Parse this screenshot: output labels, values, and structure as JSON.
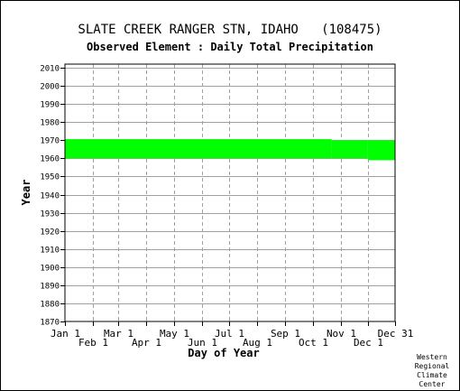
{
  "chart_data": {
    "type": "bar",
    "title": "SLATE CREEK RANGER STN, IDAHO   (108475)",
    "subtitle": "Observed Element : Daily Total Precipitation",
    "xlabel": "Day of Year",
    "ylabel": "Year",
    "ylim": [
      1870,
      2012
    ],
    "y_ticks": [
      1870,
      1880,
      1890,
      1900,
      1910,
      1920,
      1930,
      1940,
      1950,
      1960,
      1970,
      1980,
      1990,
      2000,
      2010
    ],
    "x_range_days": [
      1,
      365
    ],
    "x_ticks": [
      {
        "label": "Jan 1",
        "day": 1,
        "row": 0
      },
      {
        "label": "Feb 1",
        "day": 32,
        "row": 1
      },
      {
        "label": "Mar 1",
        "day": 60,
        "row": 0
      },
      {
        "label": "Apr 1",
        "day": 91,
        "row": 1
      },
      {
        "label": "May 1",
        "day": 121,
        "row": 0
      },
      {
        "label": "Jun 1",
        "day": 152,
        "row": 1
      },
      {
        "label": "Jul 1",
        "day": 182,
        "row": 0
      },
      {
        "label": "Aug 1",
        "day": 213,
        "row": 1
      },
      {
        "label": "Sep 1",
        "day": 244,
        "row": 0
      },
      {
        "label": "Oct 1",
        "day": 274,
        "row": 1
      },
      {
        "label": "Nov 1",
        "day": 305,
        "row": 0
      },
      {
        "label": "Dec 1",
        "day": 335,
        "row": 1
      },
      {
        "label": "Dec 31",
        "day": 365,
        "row": 0
      }
    ],
    "grid": true,
    "series": [
      {
        "color": "#00ff00",
        "segments": [
          {
            "start_day": 1,
            "end_day": 295,
            "year_from": 1960.0,
            "year_to": 1970.6
          },
          {
            "start_day": 295,
            "end_day": 335,
            "year_from": 1960.0,
            "year_to": 1970.0
          },
          {
            "start_day": 335,
            "end_day": 365,
            "year_from": 1959.0,
            "year_to": 1970.0
          }
        ]
      }
    ]
  },
  "credit": [
    "Western",
    "Regional",
    "Climate",
    "Center"
  ]
}
